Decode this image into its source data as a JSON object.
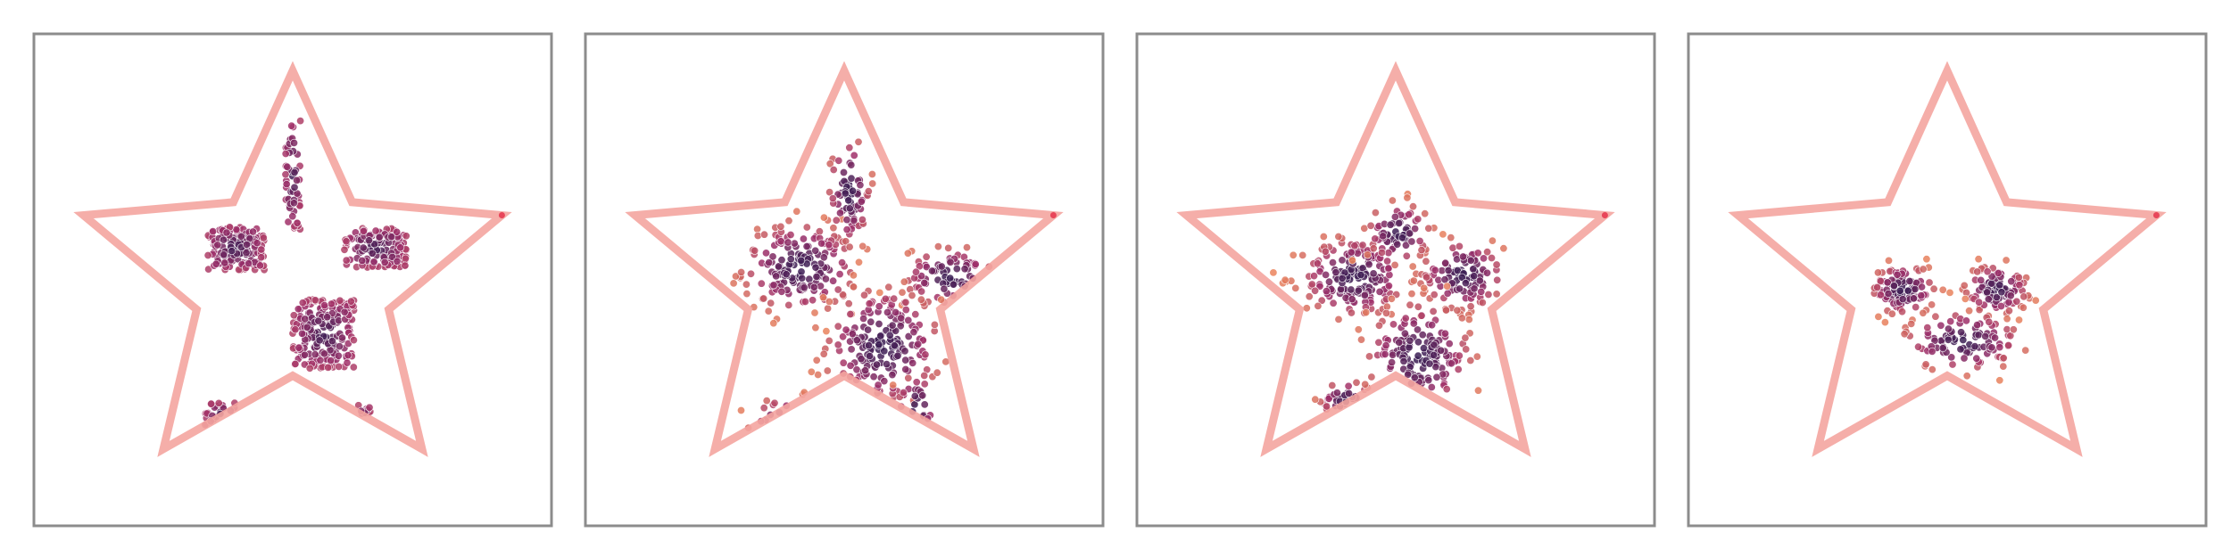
{
  "figure": {
    "panel_count": 4,
    "colors": {
      "frame": "#8c8c8c",
      "boundary": "#f4a5a0",
      "dense": "#3b1f55",
      "mid": "#a0306a",
      "light": "#f08a5c"
    }
  },
  "chart_data": [
    {
      "type": "scatter",
      "title": "",
      "xlabel": "",
      "ylabel": "",
      "xlim": [
        -1,
        1
      ],
      "ylim": [
        -1,
        1
      ],
      "grid": false,
      "star_boundary": {
        "outer_radius": 0.85,
        "inner_radius": 0.39
      },
      "clusters": [
        {
          "center": [
            -0.22,
            0.13
          ],
          "spread": [
            0.11,
            0.09
          ],
          "shape": "square",
          "weight": 0.16
        },
        {
          "center": [
            0.32,
            0.13
          ],
          "spread": [
            0.12,
            0.08
          ],
          "shape": "square",
          "weight": 0.15
        },
        {
          "center": [
            0.12,
            -0.22
          ],
          "spread": [
            0.12,
            0.14
          ],
          "shape": "square",
          "weight": 0.22
        },
        {
          "center": [
            -0.27,
            -0.55
          ],
          "spread": [
            0.07,
            0.05
          ],
          "shape": "square",
          "weight": 0.06
        },
        {
          "center": [
            0.0,
            0.43
          ],
          "spread": [
            0.03,
            0.23
          ],
          "shape": "square",
          "weight": 0.06
        },
        {
          "center": [
            0.27,
            -0.57
          ],
          "spread": [
            0.03,
            0.06
          ],
          "shape": "square",
          "weight": 0.03
        }
      ]
    },
    {
      "type": "scatter",
      "title": "",
      "xlabel": "",
      "ylabel": "",
      "xlim": [
        -1,
        1
      ],
      "ylim": [
        -1,
        1
      ],
      "grid": false,
      "star_boundary": {
        "outer_radius": 0.85,
        "inner_radius": 0.39
      },
      "clusters": [
        {
          "center": [
            -0.17,
            0.05
          ],
          "spread": [
            0.11,
            0.09
          ],
          "shape": "blob",
          "weight": 0.2
        },
        {
          "center": [
            0.41,
            0.01
          ],
          "spread": [
            0.09,
            0.06
          ],
          "shape": "blob",
          "weight": 0.1
        },
        {
          "center": [
            0.15,
            -0.27
          ],
          "spread": [
            0.11,
            0.12
          ],
          "shape": "blob",
          "weight": 0.22
        },
        {
          "center": [
            -0.22,
            -0.58
          ],
          "spread": [
            0.07,
            0.05
          ],
          "shape": "blob",
          "weight": 0.07
        },
        {
          "center": [
            0.02,
            0.36
          ],
          "spread": [
            0.04,
            0.11
          ],
          "shape": "blob",
          "weight": 0.08
        },
        {
          "center": [
            0.28,
            -0.52
          ],
          "spread": [
            0.04,
            0.07
          ],
          "shape": "blob",
          "weight": 0.04
        }
      ]
    },
    {
      "type": "scatter",
      "title": "",
      "xlabel": "",
      "ylabel": "",
      "xlim": [
        -1,
        1
      ],
      "ylim": [
        -1,
        1
      ],
      "grid": false,
      "star_boundary": {
        "outer_radius": 0.85,
        "inner_radius": 0.39
      },
      "clusters": [
        {
          "center": [
            -0.16,
            0.01
          ],
          "spread": [
            0.1,
            0.08
          ],
          "shape": "blob",
          "weight": 0.2
        },
        {
          "center": [
            0.26,
            0.02
          ],
          "spread": [
            0.08,
            0.07
          ],
          "shape": "blob",
          "weight": 0.13
        },
        {
          "center": [
            0.09,
            -0.31
          ],
          "spread": [
            0.1,
            0.11
          ],
          "shape": "blob",
          "weight": 0.2
        },
        {
          "center": [
            -0.19,
            -0.49
          ],
          "spread": [
            0.05,
            0.04
          ],
          "shape": "blob",
          "weight": 0.07
        },
        {
          "center": [
            0.01,
            0.19
          ],
          "spread": [
            0.06,
            0.06
          ],
          "shape": "blob",
          "weight": 0.08
        }
      ]
    },
    {
      "type": "scatter",
      "title": "",
      "xlabel": "",
      "ylabel": "",
      "xlim": [
        -1,
        1
      ],
      "ylim": [
        -1,
        1
      ],
      "grid": false,
      "star_boundary": {
        "outer_radius": 0.85,
        "inner_radius": 0.39
      },
      "clusters": [
        {
          "center": [
            -0.17,
            -0.04
          ],
          "spread": [
            0.06,
            0.05
          ],
          "shape": "blob",
          "weight": 0.12
        },
        {
          "center": [
            0.19,
            -0.04
          ],
          "spread": [
            0.06,
            0.05
          ],
          "shape": "blob",
          "weight": 0.12
        },
        {
          "center": [
            0.06,
            -0.25
          ],
          "spread": [
            0.11,
            0.06
          ],
          "shape": "blob",
          "weight": 0.12
        }
      ]
    }
  ]
}
